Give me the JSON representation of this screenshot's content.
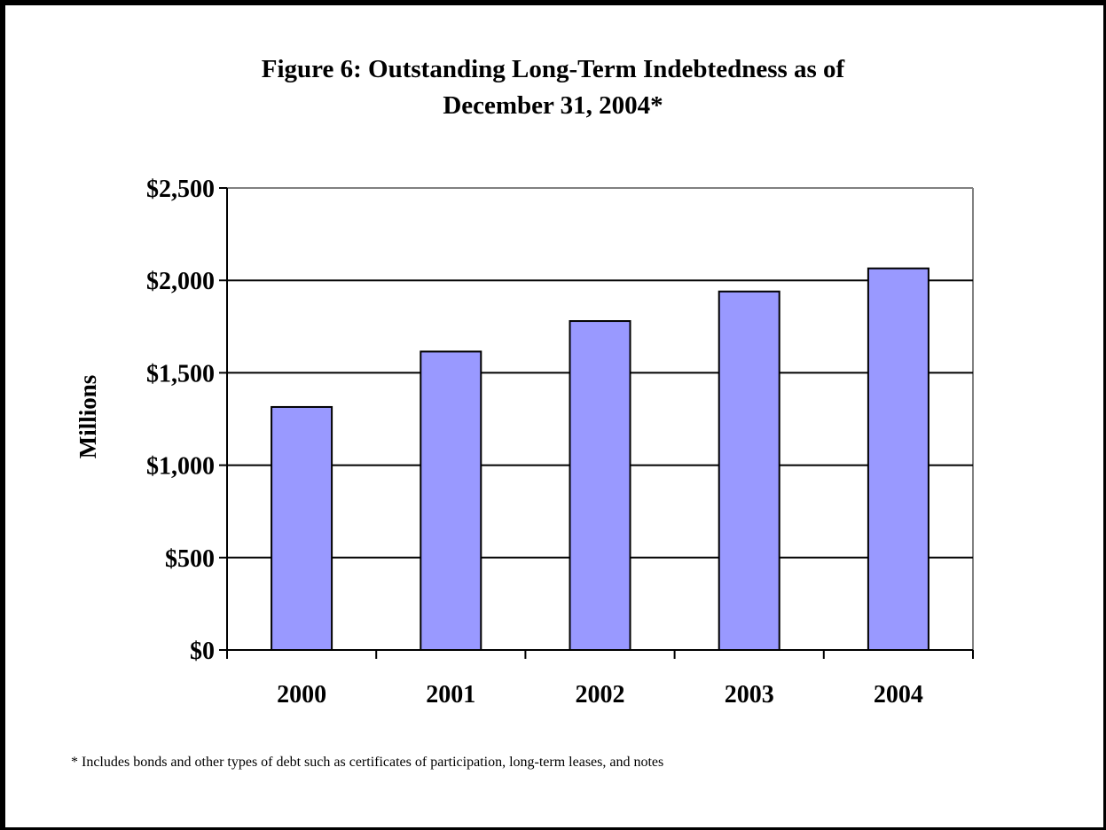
{
  "chart_data": {
    "type": "bar",
    "title_line1": "Figure 6: Outstanding Long-Term Indebtedness as of",
    "title_line2": "December 31, 2004*",
    "ylabel": "Millions",
    "xlabel": "",
    "categories": [
      "2000",
      "2001",
      "2002",
      "2003",
      "2004"
    ],
    "values": [
      1315,
      1615,
      1780,
      1940,
      2065
    ],
    "ylim": [
      0,
      2500
    ],
    "yticks": [
      0,
      500,
      1000,
      1500,
      2000,
      2500
    ],
    "ytick_labels": [
      "$0",
      "$500",
      "$1,000",
      "$1,500",
      "$2,000",
      "$2,500"
    ],
    "grid": true,
    "legend": "none",
    "bar_color": "#9999ff",
    "footnote": "* Includes bonds and other types of debt such as certificates of participation, long-term leases, and notes"
  }
}
